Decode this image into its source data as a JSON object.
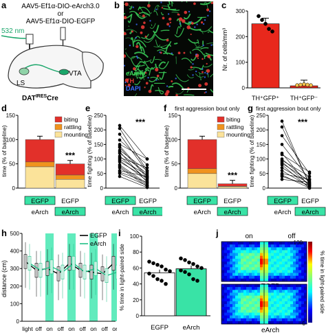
{
  "panels": {
    "a": {
      "letter": "a",
      "virus_line1": "AAV5-Ef1α-DIO-eArch3.0",
      "virus_or": "or",
      "virus_line2": "AAV5-Ef1α-DIO-EGFP",
      "laser": "532 nm",
      "ls": "LS",
      "vta": "VTA",
      "mouse_line": "DAT",
      "mouse_sup": "IRES",
      "mouse_tail": "Cre"
    },
    "b": {
      "letter": "b",
      "legend": [
        "eArch",
        "TH",
        "DAPI"
      ],
      "legend_colors": [
        "#39d353",
        "#e53935",
        "#3b6bff"
      ]
    },
    "c": {
      "letter": "c",
      "ylabel": "Nr. of cells/mm³",
      "yticks": [
        "0",
        "100",
        "200",
        "300"
      ],
      "categories": [
        "TH⁺GFP⁺",
        "TH⁺GFP⁻"
      ]
    },
    "d": {
      "letter": "d",
      "ylabel": "time (% of baseline)",
      "stars": "***",
      "legend": [
        "biting",
        "rattling",
        "mounting"
      ],
      "yticks": [
        "0",
        "50",
        "100",
        "150"
      ]
    },
    "e": {
      "letter": "e",
      "ylabel": "time fighting (% of baseline)",
      "stars": "***",
      "yticks": [
        "0",
        "50",
        "100",
        "150",
        "200",
        "250"
      ]
    },
    "f": {
      "letter": "f",
      "title": "first aggression bout only",
      "ylabel": "time (% of baseline)",
      "stars": "***",
      "legend": [
        "biting",
        "rattling",
        "mounting"
      ],
      "yticks": [
        "0",
        "50",
        "100",
        "150"
      ]
    },
    "g": {
      "letter": "g",
      "title": "first aggression bout only",
      "ylabel": "time fighting (% of baseline)",
      "stars": "***",
      "yticks": [
        "0",
        "50",
        "100",
        "150",
        "200",
        "250"
      ]
    },
    "cond": {
      "egfp": "EGFP",
      "earch": "eArch"
    },
    "h": {
      "letter": "h",
      "ylabel": "distance (cm)",
      "legend": [
        "EGFP",
        "eArch"
      ],
      "yticks": [
        "0",
        "100",
        "200",
        "300",
        "400",
        "500"
      ],
      "xticks": [
        "light",
        "off",
        "on",
        "off",
        "on",
        "off",
        "on",
        "off",
        "on"
      ]
    },
    "i": {
      "letter": "i",
      "ylabel": "% time in light-paired side",
      "yticks": [
        "0",
        "20",
        "40",
        "60",
        "80",
        "100"
      ],
      "categories": [
        "EGFP",
        "eArch"
      ]
    },
    "j": {
      "letter": "j",
      "on": "on",
      "off": "off",
      "egfp": "EGFP",
      "earch": "eArch",
      "cbar_max": "100",
      "cbar_min": "0",
      "cbar_label": "% time in light-paired side"
    }
  },
  "chart_data": [
    {
      "panel": "c",
      "type": "bar",
      "categories": [
        "TH⁺GFP⁺",
        "TH⁺GFP⁻"
      ],
      "values": [
        250,
        8
      ],
      "ylim": [
        0,
        300
      ],
      "ylabel": "Nr. of cells/mm³",
      "points": [
        [
          280,
          265,
          250,
          230,
          220
        ],
        [
          10,
          12,
          14,
          12,
          10
        ]
      ],
      "bar_color": "#e8281c"
    },
    {
      "panel": "d",
      "type": "bar",
      "categories": [
        "EGFP",
        "eArch"
      ],
      "ylim": [
        0,
        150
      ],
      "series": [
        {
          "name": "mounting",
          "values": [
            44,
            18
          ]
        },
        {
          "name": "rattling",
          "values": [
            10,
            9
          ]
        },
        {
          "name": "biting",
          "values": [
            46,
            23
          ]
        }
      ]
    },
    {
      "panel": "f",
      "type": "bar",
      "categories": [
        "EGFP",
        "eArch"
      ],
      "ylim": [
        0,
        150
      ],
      "series": [
        {
          "name": "mounting",
          "values": [
            30,
            3
          ]
        },
        {
          "name": "rattling",
          "values": [
            10,
            1
          ]
        },
        {
          "name": "biting",
          "values": [
            60,
            5
          ]
        }
      ]
    },
    {
      "panel": "e",
      "type": "line",
      "categories": [
        "EGFP",
        "eArch"
      ],
      "ylim": [
        0,
        250
      ],
      "pairs": [
        [
          215,
          100
        ],
        [
          205,
          60
        ],
        [
          185,
          55
        ],
        [
          165,
          80
        ],
        [
          150,
          100
        ],
        [
          145,
          40
        ],
        [
          140,
          35
        ],
        [
          130,
          60
        ],
        [
          125,
          20
        ],
        [
          120,
          50
        ],
        [
          110,
          30
        ],
        [
          105,
          70
        ],
        [
          100,
          45
        ],
        [
          95,
          25
        ],
        [
          90,
          35
        ],
        [
          80,
          15
        ],
        [
          75,
          10
        ],
        [
          70,
          5
        ],
        [
          60,
          40
        ],
        [
          55,
          20
        ],
        [
          50,
          8
        ],
        [
          40,
          2
        ]
      ]
    },
    {
      "panel": "g",
      "type": "line",
      "categories": [
        "EGFP",
        "eArch"
      ],
      "ylim": [
        0,
        250
      ],
      "pairs": [
        [
          230,
          10
        ],
        [
          210,
          15
        ],
        [
          180,
          50
        ],
        [
          150,
          30
        ],
        [
          120,
          5
        ],
        [
          115,
          55
        ],
        [
          100,
          20
        ],
        [
          95,
          40
        ],
        [
          90,
          10
        ],
        [
          85,
          25
        ],
        [
          80,
          0
        ],
        [
          70,
          15
        ],
        [
          60,
          5
        ],
        [
          50,
          30
        ],
        [
          45,
          0
        ],
        [
          40,
          10
        ],
        [
          30,
          20
        ]
      ]
    },
    {
      "panel": "h",
      "type": "line",
      "ylim": [
        0,
        500
      ],
      "x": [
        "light",
        "off",
        "on",
        "off",
        "on",
        "off",
        "on",
        "off",
        "on"
      ],
      "series": [
        {
          "name": "EGFP",
          "values": [
            340,
            290,
            300,
            270,
            330,
            290,
            280,
            270,
            330
          ]
        },
        {
          "name": "eArch",
          "values": [
            330,
            290,
            310,
            280,
            330,
            280,
            300,
            260,
            280
          ]
        }
      ]
    },
    {
      "panel": "i",
      "type": "bar",
      "categories": [
        "EGFP",
        "eArch"
      ],
      "values": [
        54,
        59
      ],
      "ylim": [
        0,
        100
      ],
      "points": [
        [
          68,
          66,
          64,
          62,
          58,
          56,
          53,
          50,
          46,
          44,
          40
        ],
        [
          72,
          70,
          67,
          65,
          62,
          60,
          57,
          55,
          52,
          46,
          44
        ]
      ]
    },
    {
      "panel": "j",
      "type": "heatmap",
      "rows": [
        "EGFP",
        "eArch"
      ],
      "columns": [
        "on",
        "off"
      ],
      "range": [
        0,
        100
      ]
    }
  ]
}
